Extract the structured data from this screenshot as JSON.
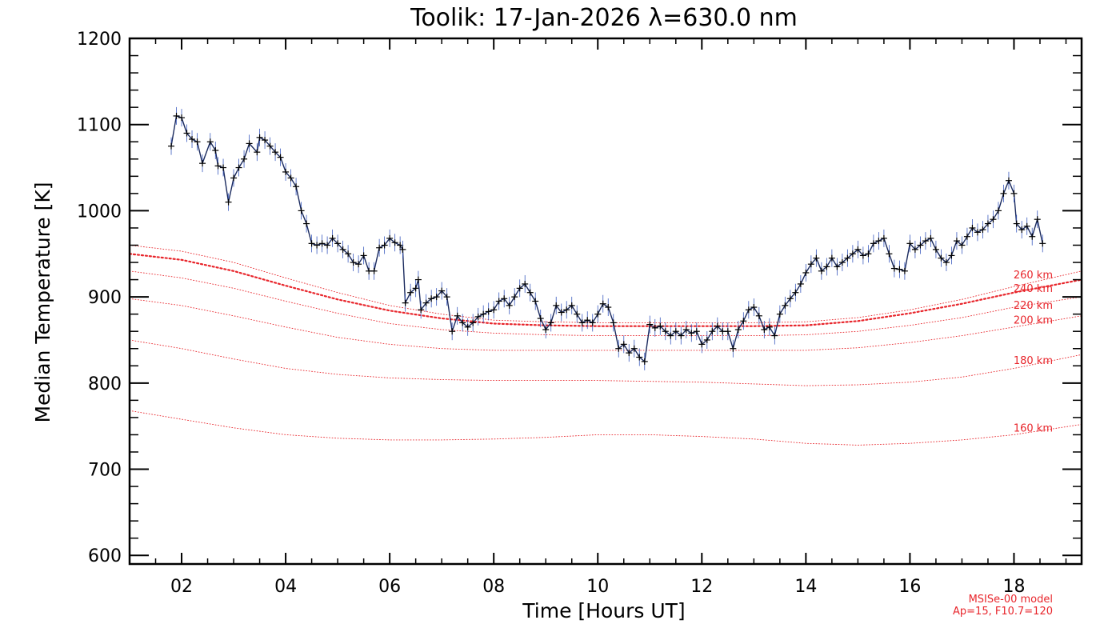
{
  "chart_data": {
    "type": "line",
    "title": "Toolik: 17-Jan-2026 λ=630.0 nm",
    "xlabel": "Time [Hours UT]",
    "ylabel": "Median Temperature [K]",
    "xlim": [
      1.0,
      19.3
    ],
    "ylim": [
      590,
      1200
    ],
    "xticks": [
      {
        "value": 2,
        "label": "02"
      },
      {
        "value": 4,
        "label": "04"
      },
      {
        "value": 6,
        "label": "06"
      },
      {
        "value": 8,
        "label": "08"
      },
      {
        "value": 10,
        "label": "10"
      },
      {
        "value": 12,
        "label": "12"
      },
      {
        "value": 14,
        "label": "14"
      },
      {
        "value": 16,
        "label": "16"
      },
      {
        "value": 18,
        "label": "18"
      }
    ],
    "yticks": [
      {
        "value": 600,
        "label": "600"
      },
      {
        "value": 700,
        "label": "700"
      },
      {
        "value": 800,
        "label": "800"
      },
      {
        "value": 900,
        "label": "900"
      },
      {
        "value": 1000,
        "label": "1000"
      },
      {
        "value": 1100,
        "label": "1100"
      },
      {
        "value": 1200,
        "label": "1200"
      }
    ],
    "grid": false,
    "series": [
      {
        "role": "measured",
        "color": "#1a2a5e",
        "points": [
          [
            1.8,
            1075
          ],
          [
            1.9,
            1110
          ],
          [
            2.0,
            1108
          ],
          [
            2.1,
            1090
          ],
          [
            2.2,
            1083
          ],
          [
            2.3,
            1080
          ],
          [
            2.4,
            1055
          ],
          [
            2.55,
            1080
          ],
          [
            2.65,
            1070
          ],
          [
            2.7,
            1052
          ],
          [
            2.8,
            1050
          ],
          [
            2.9,
            1010
          ],
          [
            3.0,
            1038
          ],
          [
            3.1,
            1050
          ],
          [
            3.2,
            1060
          ],
          [
            3.3,
            1078
          ],
          [
            3.45,
            1068
          ],
          [
            3.5,
            1085
          ],
          [
            3.6,
            1082
          ],
          [
            3.7,
            1075
          ],
          [
            3.8,
            1068
          ],
          [
            3.9,
            1062
          ],
          [
            4.0,
            1045
          ],
          [
            4.1,
            1038
          ],
          [
            4.2,
            1028
          ],
          [
            4.3,
            1000
          ],
          [
            4.4,
            985
          ],
          [
            4.5,
            962
          ],
          [
            4.6,
            960
          ],
          [
            4.7,
            962
          ],
          [
            4.8,
            960
          ],
          [
            4.9,
            968
          ],
          [
            5.0,
            962
          ],
          [
            5.1,
            955
          ],
          [
            5.2,
            950
          ],
          [
            5.3,
            940
          ],
          [
            5.4,
            938
          ],
          [
            5.5,
            948
          ],
          [
            5.6,
            930
          ],
          [
            5.7,
            930
          ],
          [
            5.8,
            957
          ],
          [
            5.9,
            960
          ],
          [
            6.0,
            968
          ],
          [
            6.1,
            963
          ],
          [
            6.2,
            960
          ],
          [
            6.25,
            955
          ],
          [
            6.3,
            893
          ],
          [
            6.4,
            905
          ],
          [
            6.5,
            910
          ],
          [
            6.55,
            920
          ],
          [
            6.6,
            885
          ],
          [
            6.7,
            893
          ],
          [
            6.8,
            898
          ],
          [
            6.9,
            900
          ],
          [
            7.0,
            907
          ],
          [
            7.1,
            900
          ],
          [
            7.2,
            860
          ],
          [
            7.3,
            878
          ],
          [
            7.4,
            870
          ],
          [
            7.5,
            865
          ],
          [
            7.6,
            870
          ],
          [
            7.7,
            877
          ],
          [
            7.8,
            880
          ],
          [
            7.9,
            883
          ],
          [
            8.0,
            885
          ],
          [
            8.1,
            895
          ],
          [
            8.2,
            898
          ],
          [
            8.3,
            890
          ],
          [
            8.4,
            900
          ],
          [
            8.5,
            910
          ],
          [
            8.6,
            915
          ],
          [
            8.7,
            905
          ],
          [
            8.8,
            895
          ],
          [
            8.9,
            875
          ],
          [
            9.0,
            862
          ],
          [
            9.1,
            870
          ],
          [
            9.2,
            890
          ],
          [
            9.3,
            882
          ],
          [
            9.4,
            885
          ],
          [
            9.5,
            890
          ],
          [
            9.6,
            880
          ],
          [
            9.7,
            870
          ],
          [
            9.8,
            873
          ],
          [
            9.9,
            870
          ],
          [
            10.0,
            880
          ],
          [
            10.1,
            892
          ],
          [
            10.2,
            888
          ],
          [
            10.3,
            870
          ],
          [
            10.4,
            840
          ],
          [
            10.5,
            845
          ],
          [
            10.6,
            835
          ],
          [
            10.7,
            840
          ],
          [
            10.8,
            830
          ],
          [
            10.9,
            825
          ],
          [
            11.0,
            868
          ],
          [
            11.1,
            864
          ],
          [
            11.2,
            866
          ],
          [
            11.3,
            860
          ],
          [
            11.4,
            855
          ],
          [
            11.5,
            860
          ],
          [
            11.6,
            855
          ],
          [
            11.7,
            862
          ],
          [
            11.8,
            858
          ],
          [
            11.9,
            860
          ],
          [
            12.0,
            845
          ],
          [
            12.1,
            850
          ],
          [
            12.2,
            860
          ],
          [
            12.3,
            866
          ],
          [
            12.4,
            860
          ],
          [
            12.5,
            860
          ],
          [
            12.6,
            840
          ],
          [
            12.7,
            862
          ],
          [
            12.8,
            872
          ],
          [
            12.9,
            885
          ],
          [
            13.0,
            888
          ],
          [
            13.1,
            878
          ],
          [
            13.2,
            862
          ],
          [
            13.3,
            865
          ],
          [
            13.4,
            855
          ],
          [
            13.5,
            880
          ],
          [
            13.6,
            890
          ],
          [
            13.7,
            898
          ],
          [
            13.8,
            905
          ],
          [
            13.9,
            915
          ],
          [
            14.0,
            928
          ],
          [
            14.1,
            938
          ],
          [
            14.2,
            945
          ],
          [
            14.3,
            930
          ],
          [
            14.4,
            935
          ],
          [
            14.5,
            945
          ],
          [
            14.6,
            935
          ],
          [
            14.7,
            940
          ],
          [
            14.8,
            945
          ],
          [
            14.9,
            950
          ],
          [
            15.0,
            955
          ],
          [
            15.1,
            948
          ],
          [
            15.2,
            950
          ],
          [
            15.3,
            962
          ],
          [
            15.4,
            965
          ],
          [
            15.5,
            968
          ],
          [
            15.6,
            950
          ],
          [
            15.7,
            933
          ],
          [
            15.8,
            932
          ],
          [
            15.9,
            930
          ],
          [
            16.0,
            962
          ],
          [
            16.1,
            955
          ],
          [
            16.2,
            960
          ],
          [
            16.3,
            965
          ],
          [
            16.4,
            968
          ],
          [
            16.5,
            955
          ],
          [
            16.6,
            945
          ],
          [
            16.7,
            940
          ],
          [
            16.8,
            948
          ],
          [
            16.9,
            965
          ],
          [
            17.0,
            960
          ],
          [
            17.1,
            970
          ],
          [
            17.2,
            980
          ],
          [
            17.3,
            975
          ],
          [
            17.4,
            978
          ],
          [
            17.5,
            985
          ],
          [
            17.6,
            990
          ],
          [
            17.7,
            1000
          ],
          [
            17.8,
            1020
          ],
          [
            17.9,
            1035
          ],
          [
            18.0,
            1020
          ],
          [
            18.05,
            985
          ],
          [
            18.15,
            978
          ],
          [
            18.25,
            982
          ],
          [
            18.35,
            970
          ],
          [
            18.45,
            990
          ],
          [
            18.55,
            962
          ]
        ]
      }
    ],
    "model": {
      "color": "#e8262c",
      "x": [
        1.0,
        2.0,
        3.0,
        4.0,
        5.0,
        6.0,
        7.0,
        8.0,
        9.0,
        10.0,
        11.0,
        12.0,
        13.0,
        14.0,
        15.0,
        16.0,
        17.0,
        18.0,
        19.3
      ],
      "curves": [
        {
          "label": "260 km",
          "emphasized": false,
          "y": [
            960,
            953,
            940,
            922,
            905,
            890,
            880,
            873,
            871,
            870,
            870,
            870,
            870,
            871,
            876,
            885,
            897,
            912,
            930
          ]
        },
        {
          "label": "240 km",
          "emphasized": true,
          "y": [
            950,
            943,
            930,
            913,
            897,
            884,
            875,
            869,
            867,
            866,
            866,
            866,
            866,
            867,
            872,
            881,
            892,
            905,
            920
          ]
        },
        {
          "label": "220 km",
          "emphasized": false,
          "y": [
            930,
            922,
            910,
            895,
            881,
            869,
            862,
            858,
            856,
            855,
            855,
            855,
            855,
            856,
            860,
            867,
            876,
            888,
            900
          ]
        },
        {
          "label": "200 km",
          "emphasized": false,
          "y": [
            898,
            890,
            878,
            865,
            853,
            845,
            840,
            838,
            838,
            838,
            838,
            838,
            838,
            838,
            841,
            847,
            855,
            865,
            878
          ]
        },
        {
          "label": "180 km",
          "emphasized": false,
          "y": [
            850,
            840,
            828,
            817,
            810,
            806,
            804,
            803,
            803,
            803,
            802,
            801,
            799,
            797,
            798,
            801,
            807,
            817,
            833
          ]
        },
        {
          "label": "160 km",
          "emphasized": false,
          "y": [
            768,
            758,
            748,
            740,
            736,
            734,
            734,
            735,
            737,
            740,
            740,
            738,
            735,
            730,
            728,
            730,
            734,
            740,
            752
          ]
        }
      ]
    },
    "notes": [
      "MSISe-00 model",
      "Ap=15, F10.7=120"
    ]
  }
}
